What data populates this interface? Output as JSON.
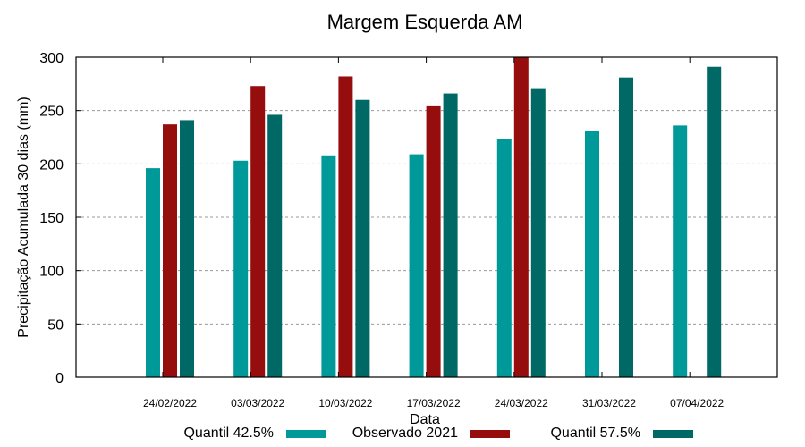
{
  "chart_data": {
    "type": "bar",
    "title": "Margem Esquerda AM",
    "xlabel": "Data",
    "ylabel": "Precipitação Acumulada 30 dias (mm)",
    "ylim": [
      0,
      300
    ],
    "yticks": [
      0,
      50,
      100,
      150,
      200,
      250,
      300
    ],
    "grid": true,
    "legend_position": "bottom",
    "categories": [
      "24/02/2022",
      "03/03/2022",
      "10/03/2022",
      "17/03/2022",
      "24/03/2022",
      "31/03/2022",
      "07/04/2022"
    ],
    "series": [
      {
        "name": "Quantil 42.5%",
        "color": "#009999",
        "values": [
          196,
          203,
          208,
          209,
          223,
          231,
          236
        ]
      },
      {
        "name": "Observado 2021",
        "color": "#960d0d",
        "values": [
          237,
          273,
          282,
          254,
          300,
          null,
          null
        ]
      },
      {
        "name": "Quantil 57.5%",
        "color": "#006865",
        "values": [
          241,
          246,
          260,
          266,
          271,
          281,
          291
        ]
      }
    ]
  }
}
